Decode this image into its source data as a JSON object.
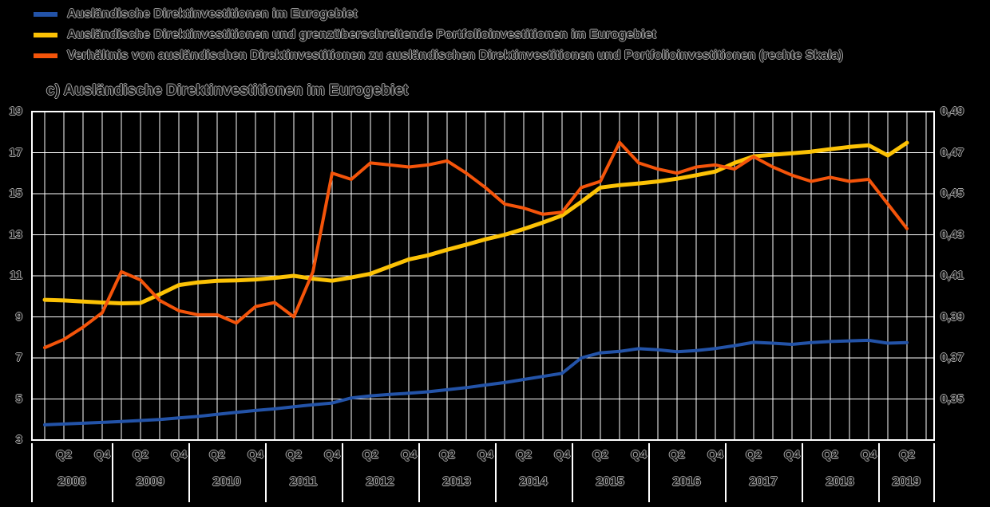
{
  "colors": {
    "background": "#000000",
    "grid": "#ffffff",
    "text_fill": "#101010",
    "text_halo": "#a6a6a6"
  },
  "chart_data": {
    "type": "line",
    "title": "c) Ausländische Direktinvestitionen im Eurogebiet",
    "x_frequency": "quarterly",
    "x_start": "2008 Q1",
    "x_end": "2019 Q2",
    "grid": true,
    "legend_position": "top-left",
    "x_axis": {
      "quarter_tick_labels": [
        "Q2",
        "Q4"
      ],
      "years": [
        "2008",
        "2009",
        "2010",
        "2011",
        "2012",
        "2013",
        "2014",
        "2015",
        "2016",
        "2017",
        "2018",
        "2019"
      ]
    },
    "left_axis": {
      "min": 3,
      "max": 19,
      "tick_labels": [
        "19",
        "17",
        "15",
        "13",
        "11",
        "9",
        "7",
        "5",
        "3"
      ]
    },
    "right_axis": {
      "top": 0.49,
      "step": 0.02,
      "visible_range": [
        0.35,
        0.49
      ],
      "tick_labels": [
        "0,49",
        "0,47",
        "0,45",
        "0,43",
        "0,41",
        "0,39",
        "0,37",
        "0,35"
      ]
    },
    "series": [
      {
        "name": "Ausländische Direktinvestitionen im Eurogebiet",
        "axis": "left",
        "color": "#2353a8",
        "width": 4,
        "values": [
          3.74,
          3.78,
          3.82,
          3.86,
          3.9,
          3.95,
          4.0,
          4.08,
          4.15,
          4.25,
          4.35,
          4.44,
          4.52,
          4.62,
          4.72,
          4.8,
          5.05,
          5.15,
          5.22,
          5.28,
          5.35,
          5.45,
          5.55,
          5.68,
          5.8,
          5.95,
          6.1,
          6.25,
          7.0,
          7.25,
          7.32,
          7.45,
          7.4,
          7.3,
          7.36,
          7.46,
          7.6,
          7.76,
          7.72,
          7.66,
          7.75,
          7.8,
          7.83,
          7.86,
          7.72,
          7.75
        ]
      },
      {
        "name": "Ausländische Direktinvestitionen und grenzüberschreitende Portfolioinvestitionen im Eurogebiet",
        "axis": "left",
        "color": "#fcc205",
        "width": 5,
        "values": [
          9.83,
          9.8,
          9.75,
          9.7,
          9.66,
          9.68,
          10.1,
          10.55,
          10.68,
          10.76,
          10.78,
          10.82,
          10.9,
          11.0,
          10.86,
          10.76,
          10.92,
          11.1,
          11.45,
          11.8,
          12.0,
          12.27,
          12.52,
          12.78,
          13.0,
          13.28,
          13.6,
          13.94,
          14.6,
          15.3,
          15.42,
          15.5,
          15.6,
          15.73,
          15.9,
          16.08,
          16.5,
          16.82,
          16.9,
          16.97,
          17.05,
          17.17,
          17.28,
          17.36,
          16.86,
          17.48
        ]
      },
      {
        "name": "Verhältnis von ausländischen Direktinvestitionen zu ausländischen Direktinvestitionen und Portfolioinvestitionen (rechte Skala)",
        "axis": "right",
        "color": "#f4540a",
        "width": 4,
        "values": [
          0.375,
          0.379,
          0.385,
          0.392,
          0.412,
          0.408,
          0.398,
          0.393,
          0.391,
          0.391,
          0.387,
          0.395,
          0.397,
          0.39,
          0.412,
          0.46,
          0.457,
          0.465,
          0.464,
          0.463,
          0.464,
          0.466,
          0.46,
          0.453,
          0.445,
          0.443,
          0.44,
          0.441,
          0.453,
          0.456,
          0.475,
          0.465,
          0.462,
          0.46,
          0.463,
          0.464,
          0.462,
          0.468,
          0.463,
          0.459,
          0.456,
          0.458,
          0.456,
          0.457,
          0.445,
          0.433
        ]
      }
    ]
  }
}
